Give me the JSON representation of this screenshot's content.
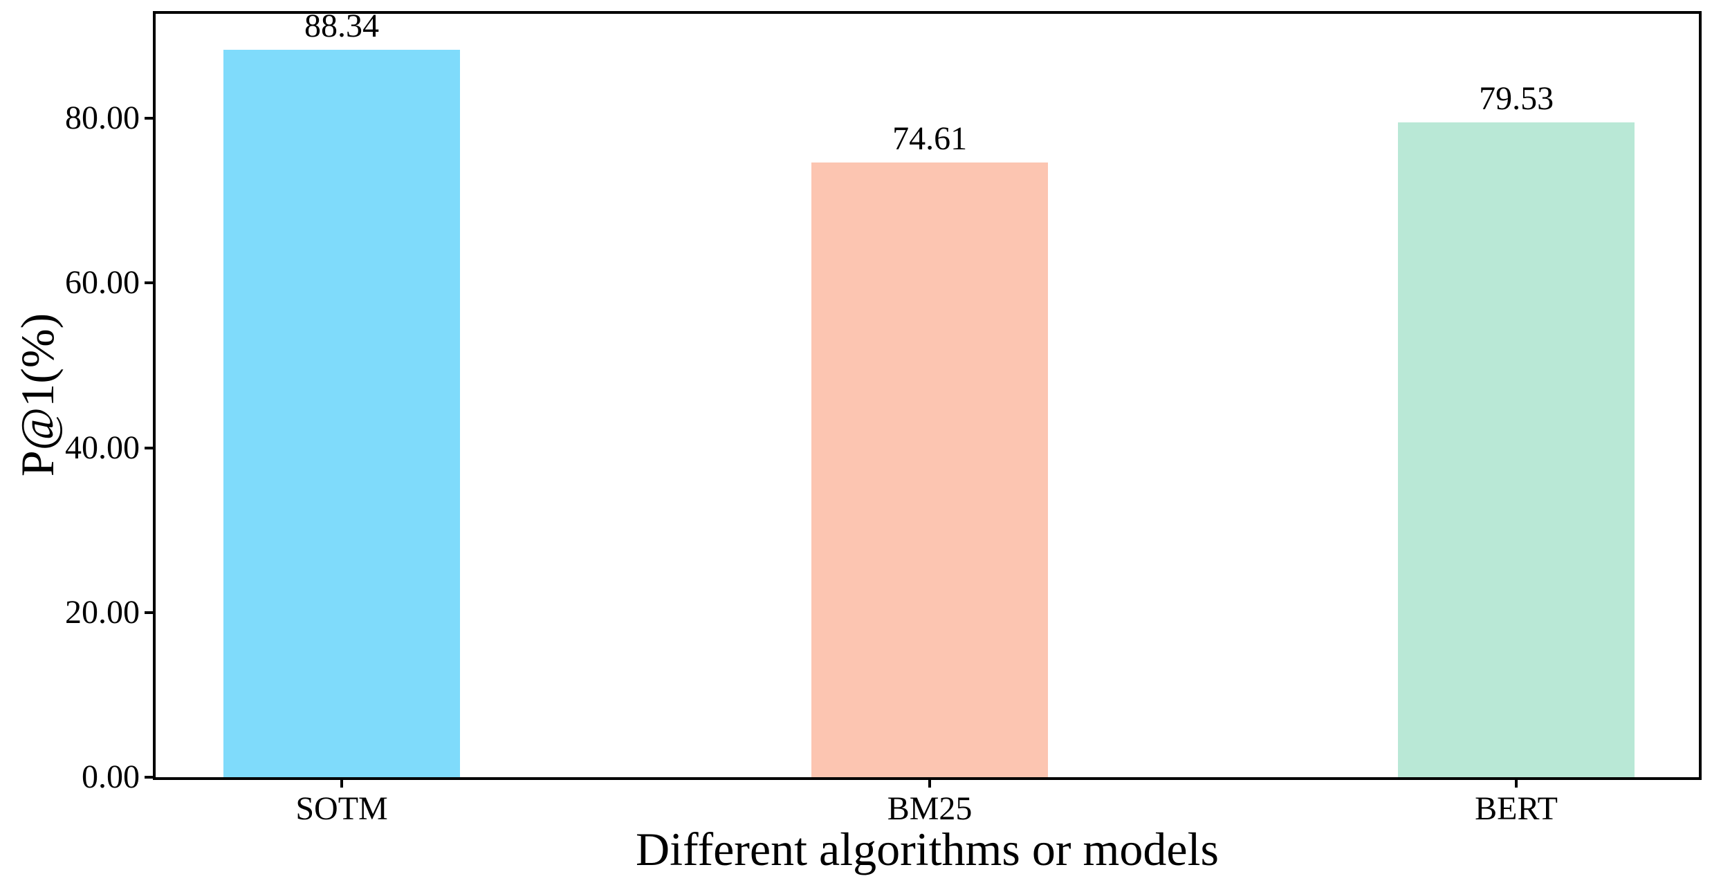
{
  "chart_data": {
    "type": "bar",
    "title": "",
    "categories": [
      "SOTM",
      "BM25",
      "BERT"
    ],
    "values": [
      88.34,
      74.61,
      79.53
    ],
    "bar_value_labels": [
      "88.34",
      "74.61",
      "79.53"
    ],
    "bar_colors": [
      "#7FDBFB",
      "#FCC5B1",
      "#B9E8D6"
    ],
    "xlabel": "Different algorithms or models",
    "ylabel": "P@1(%)",
    "ylim": [
      0,
      92.7
    ],
    "yticks": [
      0,
      20,
      40,
      60,
      80
    ],
    "ytick_labels": [
      "0.00",
      "20.00",
      "40.00",
      "60.00",
      "80.00"
    ],
    "grid": false,
    "legend_position": "none",
    "axis_color": "#000000",
    "text_color": "#000000",
    "background_color": "#FFFFFF"
  }
}
